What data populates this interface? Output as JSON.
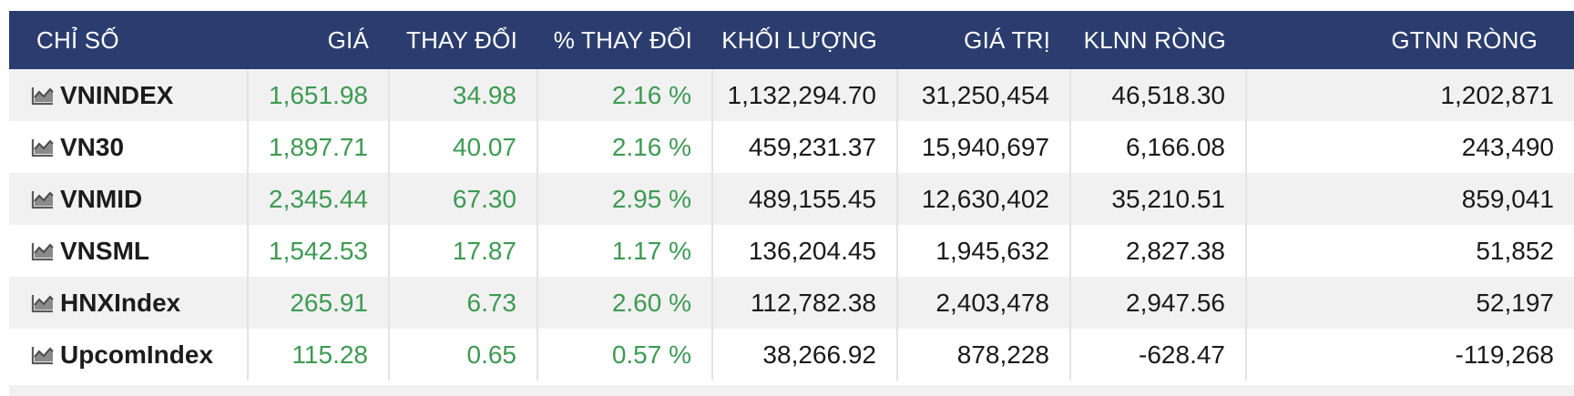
{
  "colors": {
    "header_bg": "#2b3d6e",
    "up": "#3d9a52",
    "row_alt": "#f1f1f1"
  },
  "columns": [
    "CHỈ SỐ",
    "GIÁ",
    "THAY ĐỔI",
    "% THAY ĐỔI",
    "KHỐI LƯỢNG",
    "GIÁ TRỊ",
    "KLNN RÒNG",
    "GTNN RÒNG"
  ],
  "rows": [
    {
      "name": "VNINDEX",
      "price": "1,651.98",
      "change": "34.98",
      "pct": "2.16 %",
      "volume": "1,132,294.70",
      "value": "31,250,454",
      "klnn": "46,518.30",
      "gtnn": "1,202,871",
      "icon": "chart-icon"
    },
    {
      "name": "VN30",
      "price": "1,897.71",
      "change": "40.07",
      "pct": "2.16 %",
      "volume": "459,231.37",
      "value": "15,940,697",
      "klnn": "6,166.08",
      "gtnn": "243,490",
      "icon": "chart-icon"
    },
    {
      "name": "VNMID",
      "price": "2,345.44",
      "change": "67.30",
      "pct": "2.95 %",
      "volume": "489,155.45",
      "value": "12,630,402",
      "klnn": "35,210.51",
      "gtnn": "859,041",
      "icon": "chart-icon"
    },
    {
      "name": "VNSML",
      "price": "1,542.53",
      "change": "17.87",
      "pct": "1.17 %",
      "volume": "136,204.45",
      "value": "1,945,632",
      "klnn": "2,827.38",
      "gtnn": "51,852",
      "icon": "chart-icon"
    },
    {
      "name": "HNXIndex",
      "price": "265.91",
      "change": "6.73",
      "pct": "2.60 %",
      "volume": "112,782.38",
      "value": "2,403,478",
      "klnn": "2,947.56",
      "gtnn": "52,197",
      "icon": "chart-icon"
    },
    {
      "name": "UpcomIndex",
      "price": "115.28",
      "change": "0.65",
      "pct": "0.57 %",
      "volume": "38,266.92",
      "value": "878,228",
      "klnn": "-628.47",
      "gtnn": "-119,268",
      "icon": "chart-icon"
    }
  ]
}
